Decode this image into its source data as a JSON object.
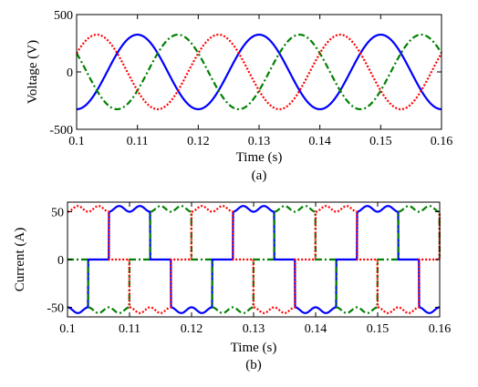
{
  "chart_data": [
    {
      "type": "line",
      "caption": "(a)",
      "xlabel": "Time (s)",
      "ylabel": "Voltage (V)",
      "xlim": [
        0.1,
        0.16
      ],
      "ylim": [
        -500,
        500
      ],
      "xticks": [
        "0.1",
        "0.11",
        "0.12",
        "0.13",
        "0.14",
        "0.15",
        "0.16"
      ],
      "yticks": [
        "500",
        "0",
        "-500"
      ],
      "grid": false,
      "waveform": "sinusoid",
      "amplitude": 325,
      "frequency_hz": 50,
      "series": [
        {
          "color": "#0000ff",
          "style": "solid",
          "phase_deg": -90
        },
        {
          "color": "#008000",
          "style": "dashdot",
          "phase_deg": 150
        },
        {
          "color": "#ff0000",
          "style": "dotted",
          "phase_deg": 30
        }
      ]
    },
    {
      "type": "line",
      "caption": "(b)",
      "xlabel": "Time (s)",
      "ylabel": "Current (A)",
      "xlim": [
        0.1,
        0.16
      ],
      "ylim": [
        -60,
        60
      ],
      "xticks": [
        "0.1",
        "0.11",
        "0.12",
        "0.13",
        "0.14",
        "0.15",
        "0.16"
      ],
      "yticks": [
        "50",
        "0",
        "-50"
      ],
      "grid": false,
      "waveform": "six-step quasi-square with ripple",
      "amplitude": 53,
      "ripple": 3,
      "frequency_hz": 50,
      "series": [
        {
          "color": "#0000ff",
          "style": "solid",
          "phase_deg": -90
        },
        {
          "color": "#008000",
          "style": "dashdot",
          "phase_deg": 150
        },
        {
          "color": "#ff0000",
          "style": "dotted",
          "phase_deg": 30
        }
      ]
    }
  ]
}
